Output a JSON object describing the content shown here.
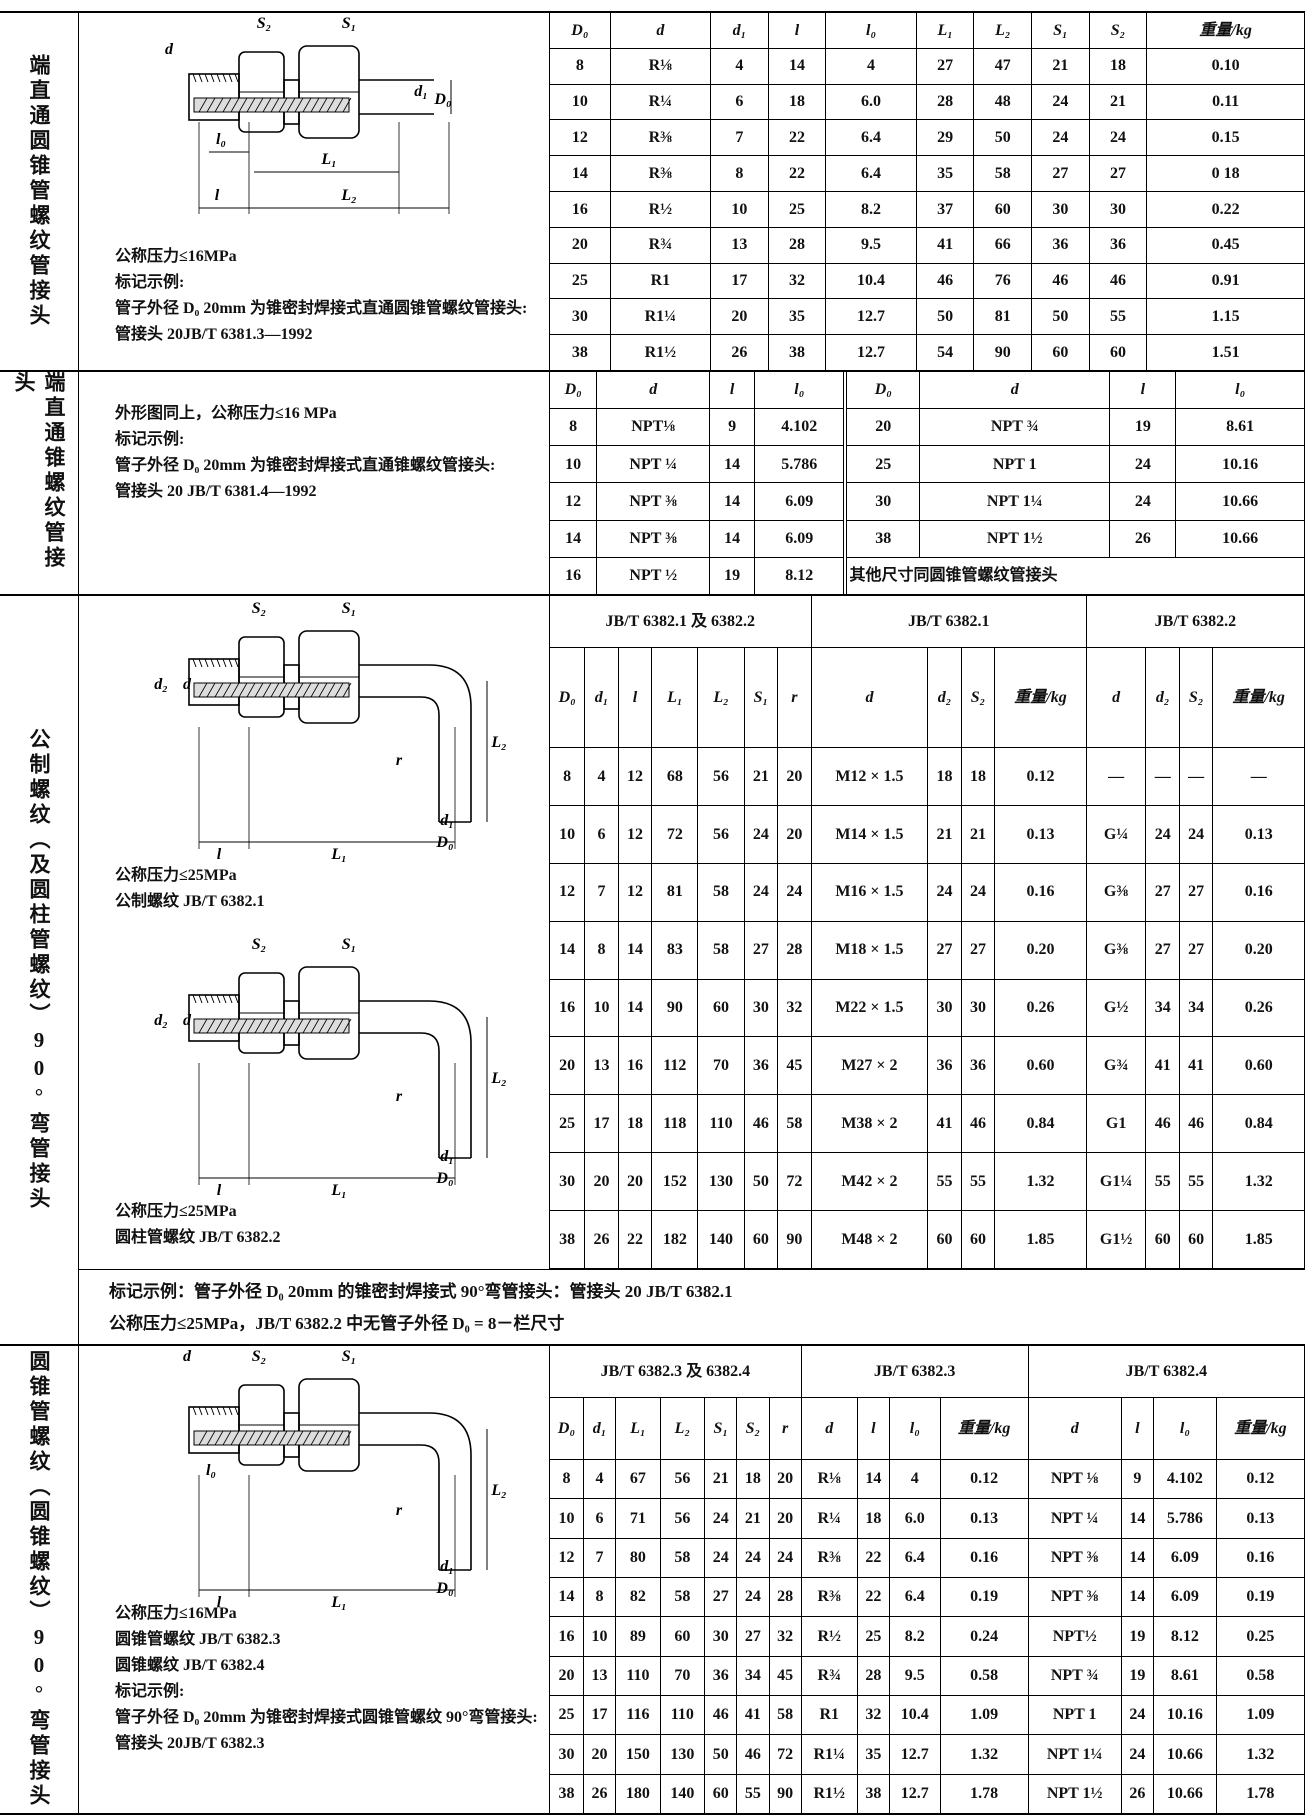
{
  "sections": [
    {
      "label": "端直通圆锥管螺纹管接头",
      "panels": [
        {
          "drawing": {
            "labels": [
              "S₂",
              "S₁",
              "d",
              "d₁",
              "D₀",
              "l₀",
              "L₁",
              "l",
              "L₂"
            ]
          },
          "notes": [
            "公称压力≤16MPa",
            "标记示例:",
            "管子外径 D₀ 20mm 为锥密封焊接式直通圆锥管螺纹管接头:",
            "管接头 20JB/T 6381.3—1992"
          ]
        }
      ],
      "table": {
        "header": [
          "D₀",
          "d",
          "d₁",
          "l",
          "l₀",
          "L₁",
          "L₂",
          "S₁",
          "S₂",
          "重量/kg"
        ],
        "rows": [
          [
            "8",
            "R⅛",
            "4",
            "14",
            "4",
            "27",
            "47",
            "21",
            "18",
            "0.10"
          ],
          [
            "10",
            "R¼",
            "6",
            "18",
            "6.0",
            "28",
            "48",
            "24",
            "21",
            "0.11"
          ],
          [
            "12",
            "R⅜",
            "7",
            "22",
            "6.4",
            "29",
            "50",
            "24",
            "24",
            "0.15"
          ],
          [
            "14",
            "R⅜",
            "8",
            "22",
            "6.4",
            "35",
            "58",
            "27",
            "27",
            "0 18"
          ],
          [
            "16",
            "R½",
            "10",
            "25",
            "8.2",
            "37",
            "60",
            "30",
            "30",
            "0.22"
          ],
          [
            "20",
            "R¾",
            "13",
            "28",
            "9.5",
            "41",
            "66",
            "36",
            "36",
            "0.45"
          ],
          [
            "25",
            "R1",
            "17",
            "32",
            "10.4",
            "46",
            "76",
            "46",
            "46",
            "0.91"
          ],
          [
            "30",
            "R1¼",
            "20",
            "35",
            "12.7",
            "50",
            "81",
            "50",
            "55",
            "1.15"
          ],
          [
            "38",
            "R1½",
            "26",
            "38",
            "12.7",
            "54",
            "90",
            "60",
            "60",
            "1.51"
          ]
        ]
      }
    },
    {
      "label": "端直通锥螺纹管接头",
      "panels": [
        {
          "notes": [
            "外形图同上，公称压力≤16 MPa",
            "标记示例:",
            "管子外径 D₀ 20mm 为锥密封焊接式直通锥螺纹管接头:",
            "管接头 20 JB/T 6381.4—1992"
          ]
        }
      ],
      "table": {
        "header": [
          "D₀",
          "d",
          "l",
          "l₀",
          "D₀",
          "d",
          "l",
          "l₀"
        ],
        "rows": [
          [
            "8",
            "NPT⅛",
            "9",
            "4.102",
            "20",
            "NPT ¾",
            "19",
            "8.61"
          ],
          [
            "10",
            "NPT ¼",
            "14",
            "5.786",
            "25",
            "NPT 1",
            "24",
            "10.16"
          ],
          [
            "12",
            "NPT ⅜",
            "14",
            "6.09",
            "30",
            "NPT 1¼",
            "24",
            "10.66"
          ],
          [
            "14",
            "NPT ⅜",
            "14",
            "6.09",
            "38",
            "NPT 1½",
            "26",
            "10.66"
          ],
          [
            "16",
            "NPT ½",
            "19",
            "8.12",
            "其他尺寸同圆锥管螺纹管接头"
          ]
        ]
      }
    },
    {
      "label": "公制螺纹（及圆柱管螺纹）90°弯管接头",
      "panels": [
        {
          "drawing": {
            "labels": [
              "S₂",
              "S₁",
              "d₂",
              "d",
              "L₂",
              "r",
              "d₁",
              "D₀",
              "l",
              "L₁"
            ]
          },
          "notes": [
            "公称压力≤25MPa",
            "公制螺纹 JB/T 6382.1"
          ]
        },
        {
          "drawing": {
            "labels": [
              "S₂",
              "S₁",
              "d₂",
              "d",
              "L₂",
              "r",
              "d₁",
              "D₀",
              "l",
              "L₁"
            ]
          },
          "notes": [
            "公称压力≤25MPa",
            "圆柱管螺纹 JB/T 6382.2"
          ]
        }
      ],
      "footer": [
        "标记示例：管子外径 D₀ 20mm 的锥密封焊接式 90°弯管接头：管接头 20 JB/T 6382.1",
        "公称压力≤25MPa，JB/T 6382.2 中无管子外径 D₀ = 8－栏尺寸"
      ],
      "table": {
        "groups": [
          "JB/T 6382.1 及 6382.2",
          "JB/T 6382.1",
          "JB/T 6382.2"
        ],
        "header": [
          "D₀",
          "d₁",
          "l",
          "L₁",
          "L₂",
          "S₁",
          "r",
          "d",
          "d₂",
          "S₂",
          "重量/kg",
          "d",
          "d₂",
          "S₂",
          "重量/kg"
        ],
        "rows": [
          [
            "8",
            "4",
            "12",
            "68",
            "56",
            "21",
            "20",
            "M12 × 1.5",
            "18",
            "18",
            "0.12",
            "—",
            "—",
            "—",
            "—"
          ],
          [
            "10",
            "6",
            "12",
            "72",
            "56",
            "24",
            "20",
            "M14 × 1.5",
            "21",
            "21",
            "0.13",
            "G¼",
            "24",
            "24",
            "0.13"
          ],
          [
            "12",
            "7",
            "12",
            "81",
            "58",
            "24",
            "24",
            "M16 × 1.5",
            "24",
            "24",
            "0.16",
            "G⅜",
            "27",
            "27",
            "0.16"
          ],
          [
            "14",
            "8",
            "14",
            "83",
            "58",
            "27",
            "28",
            "M18 × 1.5",
            "27",
            "27",
            "0.20",
            "G⅜",
            "27",
            "27",
            "0.20"
          ],
          [
            "16",
            "10",
            "14",
            "90",
            "60",
            "30",
            "32",
            "M22 × 1.5",
            "30",
            "30",
            "0.26",
            "G½",
            "34",
            "34",
            "0.26"
          ],
          [
            "20",
            "13",
            "16",
            "112",
            "70",
            "36",
            "45",
            "M27 × 2",
            "36",
            "36",
            "0.60",
            "G¾",
            "41",
            "41",
            "0.60"
          ],
          [
            "25",
            "17",
            "18",
            "118",
            "110",
            "46",
            "58",
            "M38 × 2",
            "41",
            "46",
            "0.84",
            "G1",
            "46",
            "46",
            "0.84"
          ],
          [
            "30",
            "20",
            "20",
            "152",
            "130",
            "50",
            "72",
            "M42 × 2",
            "55",
            "55",
            "1.32",
            "G1¼",
            "55",
            "55",
            "1.32"
          ],
          [
            "38",
            "26",
            "22",
            "182",
            "140",
            "60",
            "90",
            "M48 × 2",
            "60",
            "60",
            "1.85",
            "G1½",
            "60",
            "60",
            "1.85"
          ]
        ]
      }
    },
    {
      "label": "圆锥管螺纹（圆锥螺纹）90°弯管接头",
      "panels": [
        {
          "drawing": {
            "labels": [
              "d",
              "S₂",
              "S₁",
              "l₀",
              "L₂",
              "r",
              "d₁",
              "D₀",
              "l",
              "L₁"
            ]
          },
          "notes": [
            "公称压力≤16MPa",
            "圆锥管螺纹 JB/T 6382.3",
            "圆锥螺纹 JB/T 6382.4",
            "标记示例:",
            "管子外径 D₀ 20mm 为锥密封焊接式圆锥管螺纹 90°弯管接头:",
            "管接头 20JB/T 6382.3"
          ]
        }
      ],
      "table": {
        "groups": [
          "JB/T 6382.3 及 6382.4",
          "JB/T 6382.3",
          "JB/T 6382.4"
        ],
        "header": [
          "D₀",
          "d₁",
          "L₁",
          "L₂",
          "S₁",
          "S₂",
          "r",
          "d",
          "l",
          "l₀",
          "重量/kg",
          "d",
          "l",
          "l₀",
          "重量/kg"
        ],
        "rows": [
          [
            "8",
            "4",
            "67",
            "56",
            "21",
            "18",
            "20",
            "R⅛",
            "14",
            "4",
            "0.12",
            "NPT ⅛",
            "9",
            "4.102",
            "0.12"
          ],
          [
            "10",
            "6",
            "71",
            "56",
            "24",
            "21",
            "20",
            "R¼",
            "18",
            "6.0",
            "0.13",
            "NPT ¼",
            "14",
            "5.786",
            "0.13"
          ],
          [
            "12",
            "7",
            "80",
            "58",
            "24",
            "24",
            "24",
            "R⅜",
            "22",
            "6.4",
            "0.16",
            "NPT ⅜",
            "14",
            "6.09",
            "0.16"
          ],
          [
            "14",
            "8",
            "82",
            "58",
            "27",
            "24",
            "28",
            "R⅜",
            "22",
            "6.4",
            "0.19",
            "NPT ⅜",
            "14",
            "6.09",
            "0.19"
          ],
          [
            "16",
            "10",
            "89",
            "60",
            "30",
            "27",
            "32",
            "R½",
            "25",
            "8.2",
            "0.24",
            "NPT½",
            "19",
            "8.12",
            "0.25"
          ],
          [
            "20",
            "13",
            "110",
            "70",
            "36",
            "34",
            "45",
            "R¾",
            "28",
            "9.5",
            "0.58",
            "NPT ¾",
            "19",
            "8.61",
            "0.58"
          ],
          [
            "25",
            "17",
            "116",
            "110",
            "46",
            "41",
            "58",
            "R1",
            "32",
            "10.4",
            "1.09",
            "NPT 1",
            "24",
            "10.16",
            "1.09"
          ],
          [
            "30",
            "20",
            "150",
            "130",
            "50",
            "46",
            "72",
            "R1¼",
            "35",
            "12.7",
            "1.32",
            "NPT 1¼",
            "24",
            "10.66",
            "1.32"
          ],
          [
            "38",
            "26",
            "180",
            "140",
            "60",
            "55",
            "90",
            "R1½",
            "38",
            "12.7",
            "1.78",
            "NPT 1½",
            "26",
            "10.66",
            "1.78"
          ]
        ]
      }
    }
  ]
}
